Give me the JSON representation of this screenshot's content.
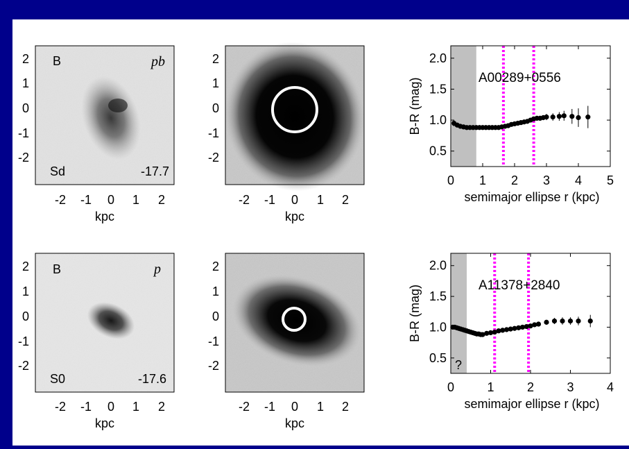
{
  "rows": [
    {
      "band_label": "B",
      "morph_type": "Sd",
      "magnitude": "-17.7",
      "code": "pb",
      "xlabel": "kpc",
      "ticks": [
        "-2",
        "-1",
        "0",
        "1",
        "2"
      ],
      "ellipse_radius_kpc": 0.8
    },
    {
      "band_label": "B",
      "morph_type": "S0",
      "magnitude": "-17.6",
      "code": "p",
      "xlabel": "kpc",
      "ticks": [
        "-2",
        "-1",
        "0",
        "1",
        "2"
      ],
      "ellipse_radius_kpc": 0.4
    }
  ],
  "chart_data": [
    {
      "type": "scatter",
      "annotation": "A00289+0556",
      "xlabel": "semimajor ellipse r (kpc)",
      "ylabel": "B-R (mag)",
      "xlim": [
        0,
        5
      ],
      "ylim": [
        0.25,
        2.2
      ],
      "xticks": [
        "0",
        "1",
        "2",
        "3",
        "4",
        "5"
      ],
      "yticks": [
        "0.5",
        "1.0",
        "1.5",
        "2.0"
      ],
      "shaded_region": [
        0,
        0.8
      ],
      "shaded_label": "",
      "vlines": [
        1.65,
        2.6
      ],
      "x": [
        0.1,
        0.2,
        0.3,
        0.4,
        0.5,
        0.6,
        0.7,
        0.8,
        0.9,
        1.0,
        1.1,
        1.2,
        1.3,
        1.4,
        1.5,
        1.6,
        1.7,
        1.8,
        1.9,
        2.0,
        2.1,
        2.2,
        2.3,
        2.4,
        2.5,
        2.6,
        2.7,
        2.8,
        2.9,
        3.0,
        3.2,
        3.4,
        3.55,
        3.8,
        4.0,
        4.3
      ],
      "y": [
        0.95,
        0.92,
        0.9,
        0.89,
        0.88,
        0.88,
        0.88,
        0.88,
        0.88,
        0.88,
        0.88,
        0.88,
        0.88,
        0.88,
        0.88,
        0.89,
        0.9,
        0.91,
        0.93,
        0.94,
        0.95,
        0.96,
        0.97,
        0.98,
        1.0,
        1.02,
        1.03,
        1.03,
        1.04,
        1.05,
        1.05,
        1.06,
        1.07,
        1.06,
        1.04,
        1.05
      ],
      "err": [
        0.05,
        0.04,
        0.03,
        0.02,
        0.01,
        0.01,
        0.01,
        0.01,
        0.01,
        0.01,
        0.01,
        0.01,
        0.01,
        0.01,
        0.01,
        0.01,
        0.01,
        0.01,
        0.02,
        0.02,
        0.02,
        0.02,
        0.02,
        0.02,
        0.03,
        0.03,
        0.03,
        0.04,
        0.04,
        0.05,
        0.06,
        0.07,
        0.08,
        0.12,
        0.15,
        0.18
      ]
    },
    {
      "type": "scatter",
      "annotation": "A11378+2840",
      "xlabel": "semimajor ellipse r (kpc)",
      "ylabel": "B-R (mag)",
      "xlim": [
        0,
        4
      ],
      "ylim": [
        0.25,
        2.2
      ],
      "xticks": [
        "0",
        "1",
        "2",
        "3",
        "4"
      ],
      "yticks": [
        "0.5",
        "1.0",
        "1.5",
        "2.0"
      ],
      "shaded_region": [
        0,
        0.4
      ],
      "shaded_label": "?",
      "vlines": [
        1.1,
        1.95
      ],
      "x": [
        0.05,
        0.1,
        0.15,
        0.2,
        0.25,
        0.3,
        0.35,
        0.4,
        0.45,
        0.5,
        0.55,
        0.6,
        0.65,
        0.7,
        0.75,
        0.8,
        0.9,
        1.0,
        1.1,
        1.2,
        1.3,
        1.4,
        1.5,
        1.6,
        1.7,
        1.8,
        1.9,
        2.0,
        2.1,
        2.2,
        2.4,
        2.6,
        2.8,
        3.0,
        3.2,
        3.5
      ],
      "y": [
        1.0,
        1.0,
        0.99,
        0.98,
        0.97,
        0.96,
        0.95,
        0.94,
        0.93,
        0.92,
        0.91,
        0.9,
        0.89,
        0.89,
        0.88,
        0.88,
        0.9,
        0.91,
        0.92,
        0.94,
        0.95,
        0.96,
        0.97,
        0.98,
        0.99,
        1.0,
        1.01,
        1.02,
        1.04,
        1.05,
        1.08,
        1.1,
        1.1,
        1.1,
        1.1,
        1.1
      ],
      "err": [
        0.01,
        0.01,
        0.01,
        0.01,
        0.01,
        0.01,
        0.01,
        0.01,
        0.01,
        0.01,
        0.01,
        0.01,
        0.01,
        0.01,
        0.01,
        0.01,
        0.01,
        0.01,
        0.01,
        0.01,
        0.01,
        0.01,
        0.02,
        0.02,
        0.02,
        0.02,
        0.02,
        0.03,
        0.03,
        0.03,
        0.04,
        0.05,
        0.06,
        0.06,
        0.07,
        0.1
      ]
    }
  ],
  "colors": {
    "background": "#00008b",
    "marker": "#000000",
    "vline": "#ff00ff",
    "shade": "#c0c0c0"
  }
}
